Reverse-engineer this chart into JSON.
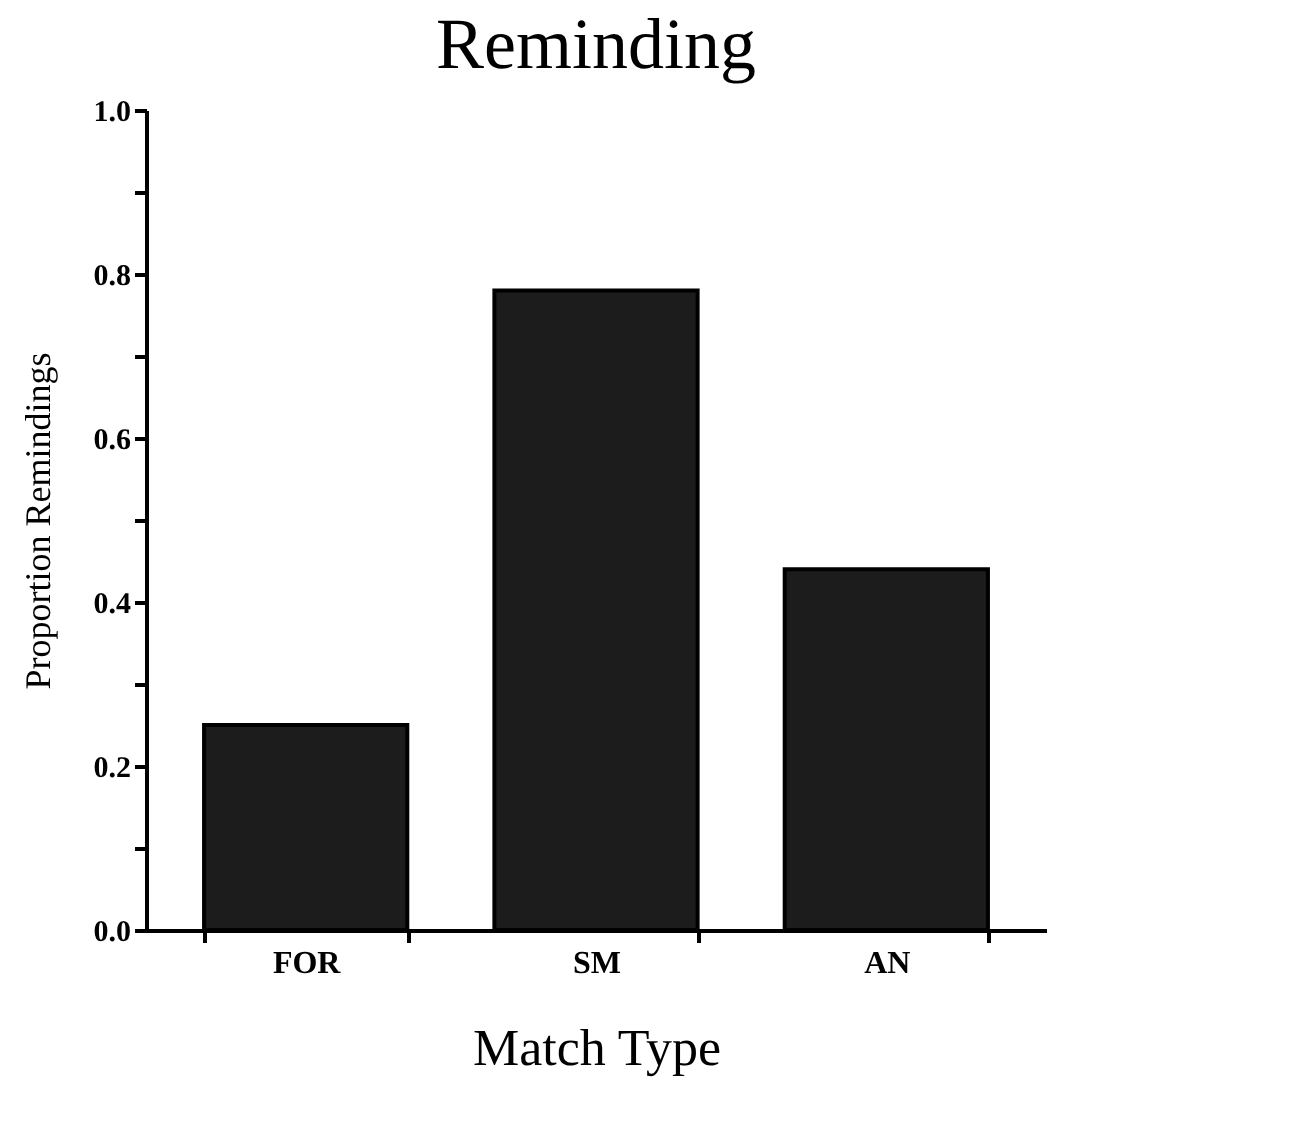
{
  "chart_data": {
    "type": "bar",
    "title": "Reminding",
    "xlabel": "Match Type",
    "ylabel": "Proportion Remindings",
    "categories": [
      "FOR",
      "SM",
      "AN"
    ],
    "values": [
      0.25,
      0.78,
      0.44
    ],
    "color": "#1c1c1c",
    "ylim": [
      0,
      1.0
    ],
    "yticks": [
      {
        "value": 0,
        "label": "0.0"
      },
      {
        "value": 0.1,
        "label": null
      },
      {
        "value": 0.2,
        "label": "0.2"
      },
      {
        "value": 0.3,
        "label": null
      },
      {
        "value": 0.4,
        "label": "0.4"
      },
      {
        "value": 0.5,
        "label": null
      },
      {
        "value": 0.6,
        "label": "0.6"
      },
      {
        "value": 0.7,
        "label": null
      },
      {
        "value": 0.8,
        "label": "0.8"
      },
      {
        "value": 0.9,
        "label": null
      },
      {
        "value": 1.0,
        "label": "1.0"
      }
    ],
    "grid": false
  }
}
